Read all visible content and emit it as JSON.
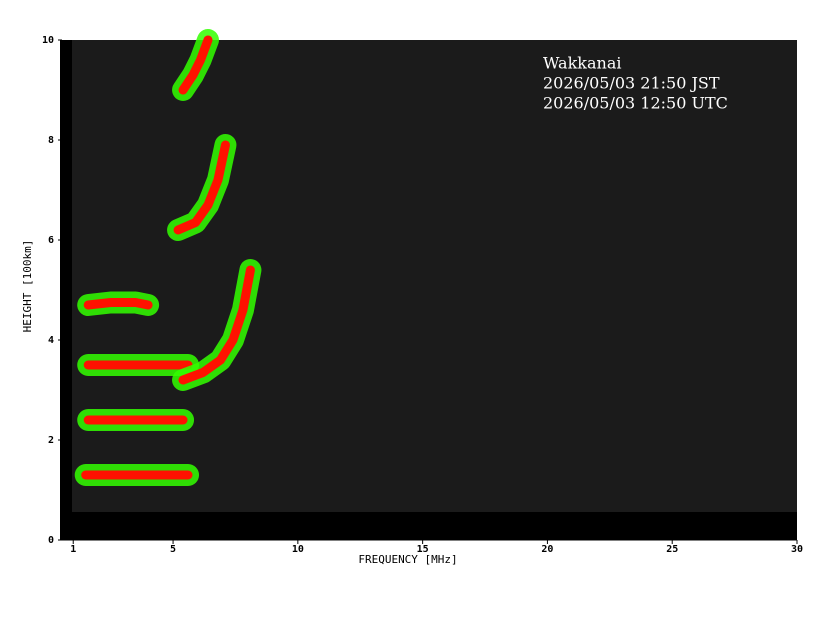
{
  "chart_data": {
    "type": "ionogram",
    "station": "Wakkanai",
    "time_jst": "2026/05/03 21:50 JST",
    "time_utc": "2026/05/03 12:50 UTC",
    "x_label": "FREQUENCY [MHz]",
    "y_label": "HEIGHT [100km]",
    "xlim": [
      0.55,
      30
    ],
    "ylim": [
      0,
      10
    ],
    "xticks": [
      1,
      5,
      10,
      15,
      20,
      25,
      30
    ],
    "yticks": [
      0,
      2,
      4,
      6,
      8,
      10
    ],
    "outer_color": "#33ff00",
    "inner_color": "#ff1100",
    "traces": [
      {
        "x": [
          1.5,
          2.5,
          3.5,
          4.5,
          5.6
        ],
        "y": [
          1.3,
          1.3,
          1.3,
          1.3,
          1.3
        ]
      },
      {
        "x": [
          1.6,
          2.5,
          3.5,
          4.5,
          5.4
        ],
        "y": [
          2.4,
          2.4,
          2.4,
          2.4,
          2.4
        ]
      },
      {
        "x": [
          1.6,
          2.5,
          3.5,
          4.5,
          5.6
        ],
        "y": [
          3.5,
          3.5,
          3.5,
          3.5,
          3.5
        ]
      },
      {
        "x": [
          1.6,
          2.5,
          3.5,
          4.0
        ],
        "y": [
          4.7,
          4.75,
          4.75,
          4.7
        ]
      },
      {
        "x": [
          5.4,
          6.2,
          6.9,
          7.4,
          7.8,
          8.1
        ],
        "y": [
          3.2,
          3.35,
          3.6,
          4.0,
          4.6,
          5.4
        ]
      },
      {
        "x": [
          5.2,
          5.9,
          6.4,
          6.8,
          7.1
        ],
        "y": [
          6.2,
          6.35,
          6.7,
          7.2,
          7.9
        ]
      },
      {
        "x": [
          5.4,
          5.8,
          6.1,
          6.4
        ],
        "y": [
          9.0,
          9.3,
          9.6,
          10.0
        ]
      }
    ]
  }
}
